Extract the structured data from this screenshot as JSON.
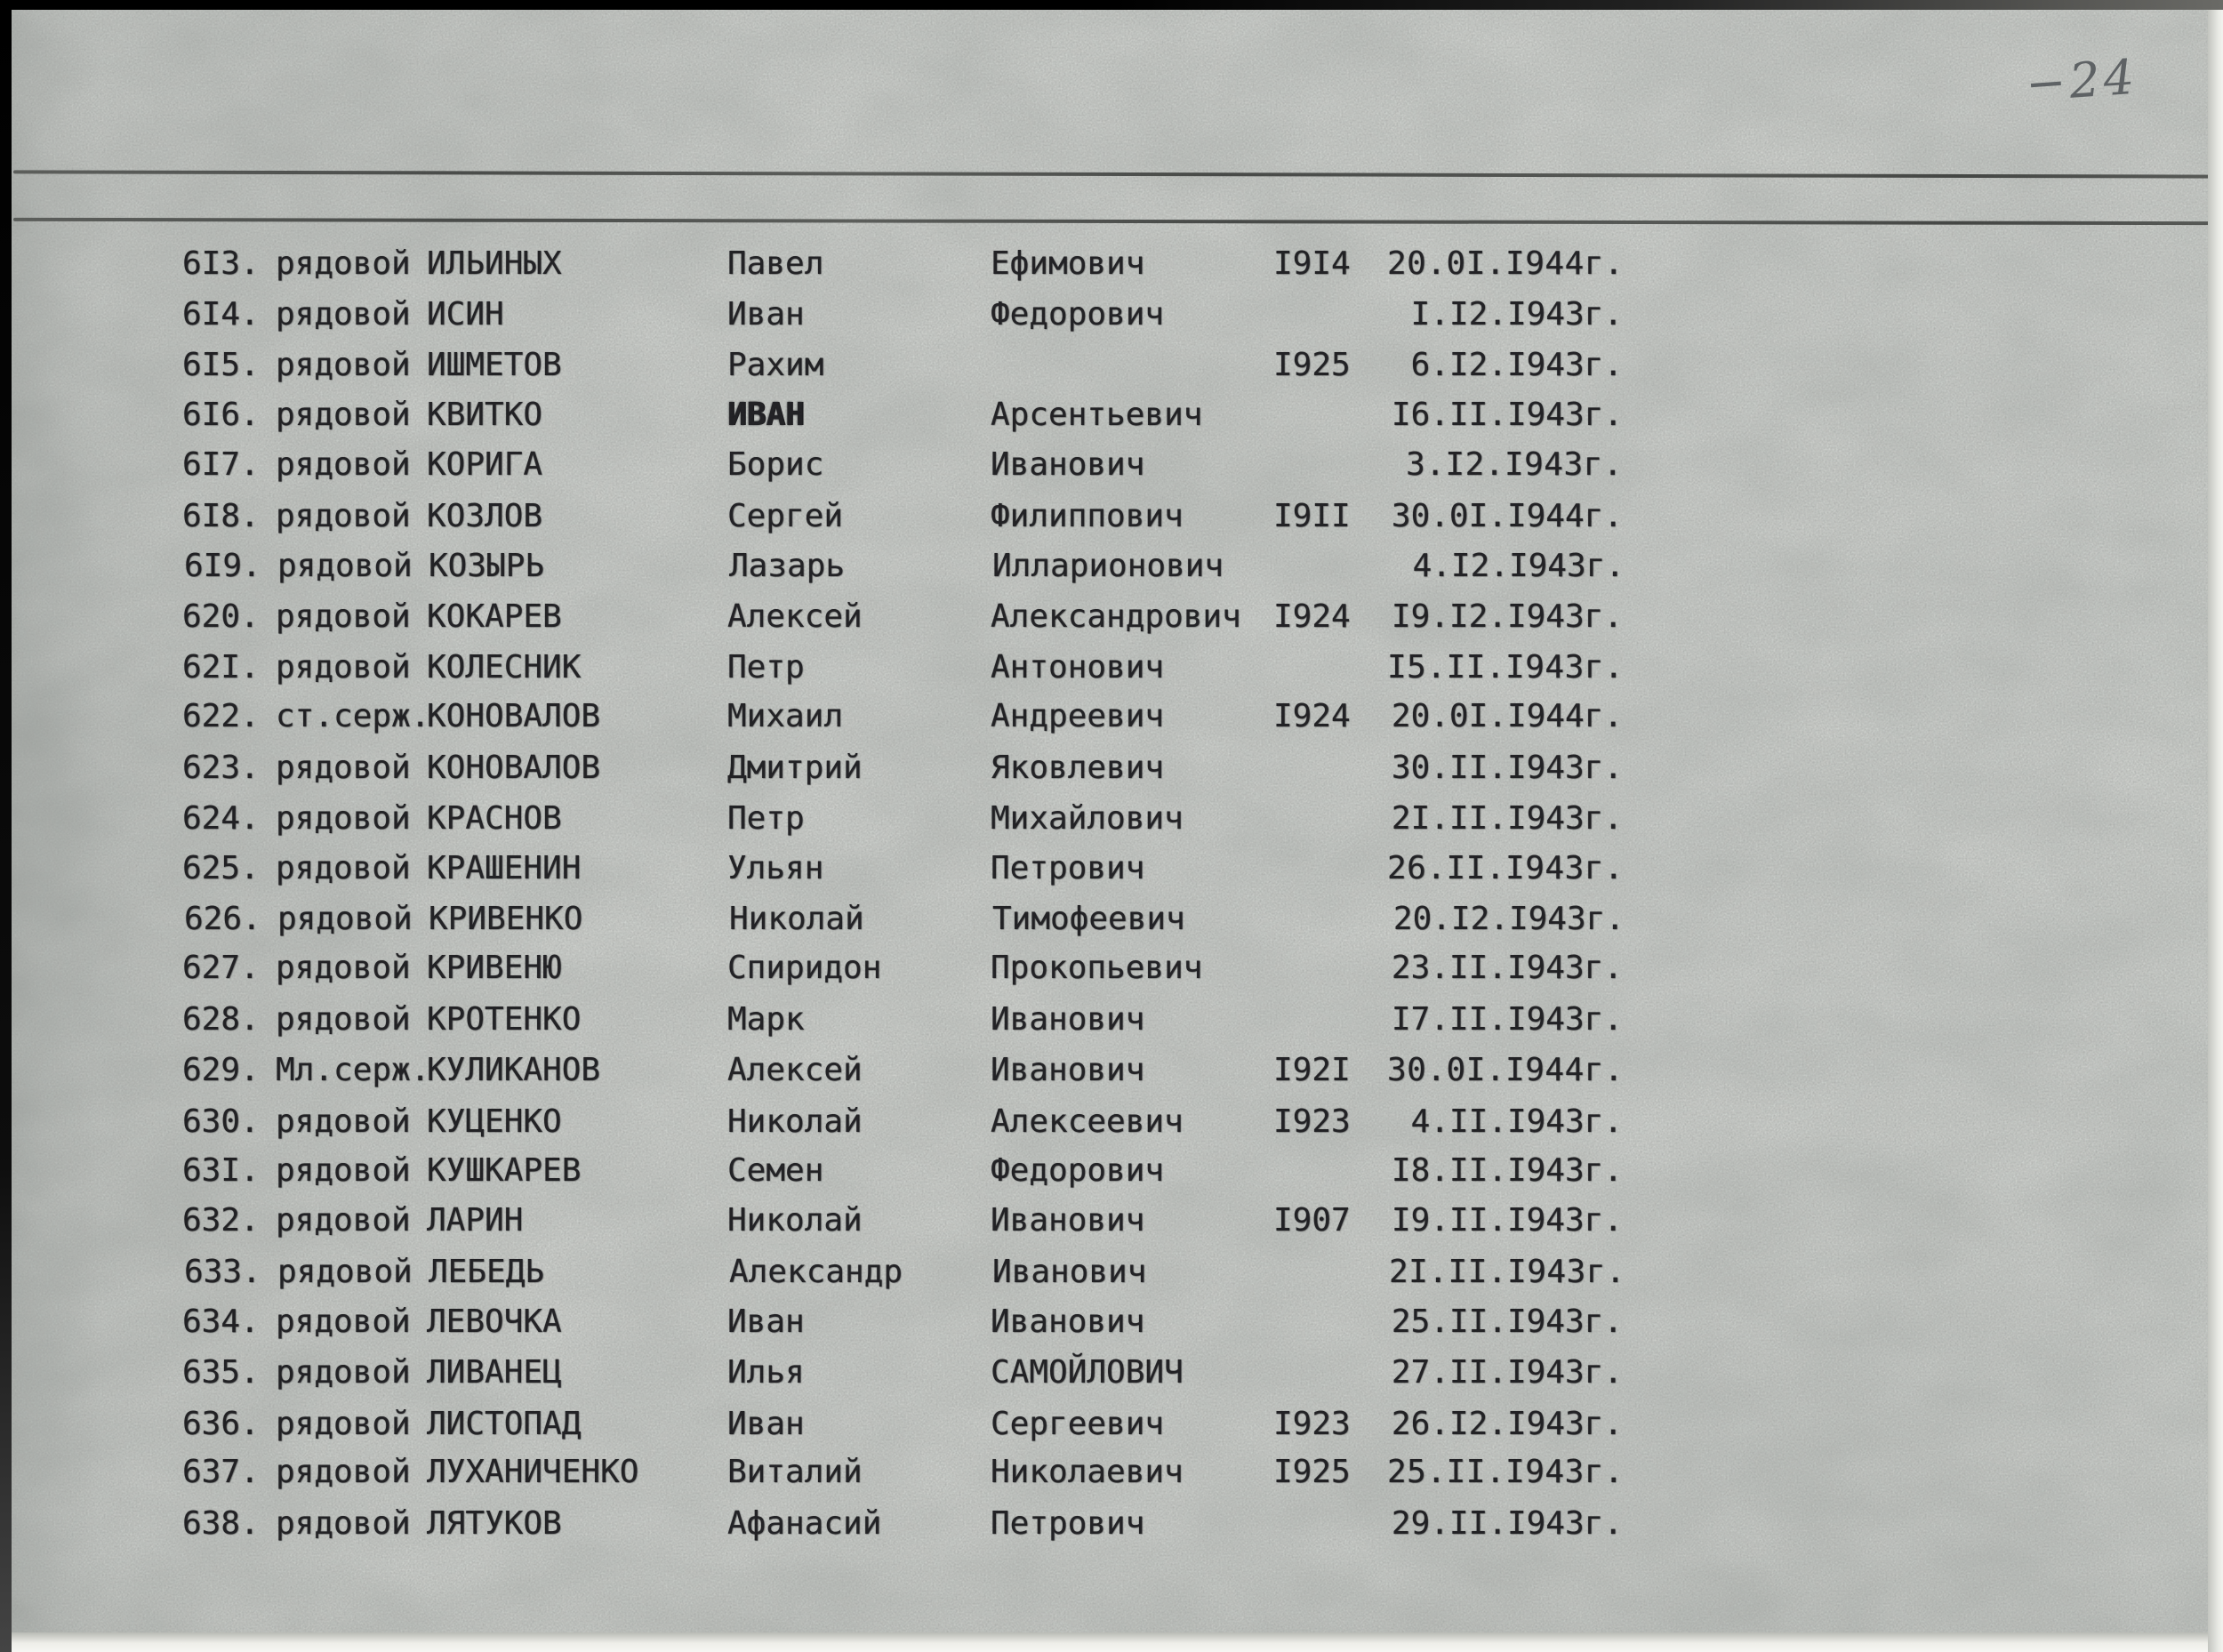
{
  "page": {
    "number_label": "−24",
    "paper_color": "#c8cbc7",
    "ink_color": "#2e2d32",
    "pencil_color": "#4e5256",
    "rule_color": "#454744"
  },
  "table": {
    "columns": [
      "number",
      "rank",
      "surname",
      "first_name",
      "patronymic",
      "birth_year",
      "death_date"
    ],
    "rows": [
      {
        "num": "6I3.",
        "rank": "рядовой",
        "surname": "ИЛЬИНЫХ",
        "name": "Павел",
        "patronymic": "Ефимович",
        "year": "I9I4",
        "date": "20.0I.I944г."
      },
      {
        "num": "6I4.",
        "rank": "рядовой",
        "surname": "ИСИН",
        "name": "Иван",
        "patronymic": "Федорович",
        "year": "",
        "date": "I.I2.I943г."
      },
      {
        "num": "6I5.",
        "rank": "рядовой",
        "surname": "ИШМЕТОВ",
        "name": "Рахим",
        "patronymic": "",
        "year": "I925",
        "date": "6.I2.I943г."
      },
      {
        "num": "6I6.",
        "rank": "рядовой",
        "surname": "КВИТКО",
        "name": "ИВАН",
        "patronymic": "Арсентьевич",
        "year": "",
        "date": "I6.II.I943г.",
        "name_bold": true
      },
      {
        "num": "6I7.",
        "rank": "рядовой",
        "surname": "КОРИГА",
        "name": "Борис",
        "patronymic": "Иванович",
        "year": "",
        "date": "3.I2.I943г."
      },
      {
        "num": "6I8.",
        "rank": "рядовой",
        "surname": "КОЗЛОВ",
        "name": "Сергей",
        "patronymic": "Филиппович",
        "year": "I9II",
        "date": "30.0I.I944г."
      },
      {
        "num": "6I9.",
        "rank": "рядовой",
        "surname": "КОЗЫРЬ",
        "name": "Лазарь",
        "patronymic": "Илларионович",
        "year": "",
        "date": "4.I2.I943г."
      },
      {
        "num": "620.",
        "rank": "рядовой",
        "surname": "КОКАРЕВ",
        "name": "Алексей",
        "patronymic": "Александрович",
        "year": "I924",
        "date": "I9.I2.I943г."
      },
      {
        "num": "62I.",
        "rank": "рядовой",
        "surname": "КОЛЕСНИК",
        "name": "Петр",
        "patronymic": "Антонович",
        "year": "",
        "date": "I5.II.I943г."
      },
      {
        "num": "622.",
        "rank": "ст.серж.",
        "surname": "КОНОВАЛОВ",
        "name": "Михаил",
        "patronymic": "Андреевич",
        "year": "I924",
        "date": "20.0I.I944г."
      },
      {
        "num": "623.",
        "rank": "рядовой",
        "surname": "КОНОВАЛОВ",
        "name": "Дмитрий",
        "patronymic": "Яковлевич",
        "year": "",
        "date": "30.II.I943г."
      },
      {
        "num": "624.",
        "rank": "рядовой",
        "surname": "КРАСНОВ",
        "name": "Петр",
        "patronymic": "Михайлович",
        "year": "",
        "date": "2I.II.I943г."
      },
      {
        "num": "625.",
        "rank": "рядовой",
        "surname": "КРАШЕНИН",
        "name": "Ульян",
        "patronymic": "Петрович",
        "year": "",
        "date": "26.II.I943г."
      },
      {
        "num": "626.",
        "rank": "рядовой",
        "surname": "КРИВЕНКО",
        "name": "Николай",
        "patronymic": "Тимофеевич",
        "year": "",
        "date": "20.I2.I943г."
      },
      {
        "num": "627.",
        "rank": "рядовой",
        "surname": "КРИВЕНЮ",
        "name": "Спиридон",
        "patronymic": "Прокопьевич",
        "year": "",
        "date": "23.II.I943г."
      },
      {
        "num": "628.",
        "rank": "рядовой",
        "surname": "КРОТЕНКО",
        "name": "Марк",
        "patronymic": "Иванович",
        "year": "",
        "date": "I7.II.I943г."
      },
      {
        "num": "629.",
        "rank": "Мл.серж.",
        "surname": "КУЛИКАНОВ",
        "name": "Алексей",
        "patronymic": "Иванович",
        "year": "I92I",
        "date": "30.0I.I944г."
      },
      {
        "num": "630.",
        "rank": "рядовой",
        "surname": "КУЦЕНКО",
        "name": "Николай",
        "patronymic": "Алексеевич",
        "year": "I923",
        "date": "4.II.I943г."
      },
      {
        "num": "63I.",
        "rank": "рядовой",
        "surname": "КУШКАРЕВ",
        "name": "Семен",
        "patronymic": "Федорович",
        "year": "",
        "date": "I8.II.I943г."
      },
      {
        "num": "632.",
        "rank": "рядовой",
        "surname": "ЛАРИН",
        "name": "Николай",
        "patronymic": "Иванович",
        "year": "I907",
        "date": "I9.II.I943г."
      },
      {
        "num": "633.",
        "rank": "рядовой",
        "surname": "ЛЕБЕДЬ",
        "name": "Александр",
        "patronymic": "Иванович",
        "year": "",
        "date": "2I.II.I943г."
      },
      {
        "num": "634.",
        "rank": "рядовой",
        "surname": "ЛЕВОЧКА",
        "name": "Иван",
        "patronymic": "Иванович",
        "year": "",
        "date": "25.II.I943г."
      },
      {
        "num": "635.",
        "rank": "рядовой",
        "surname": "ЛИВАНЕЦ",
        "name": "Илья",
        "patronymic": "САМОЙЛОВИЧ",
        "year": "",
        "date": "27.II.I943г."
      },
      {
        "num": "636.",
        "rank": "рядовой",
        "surname": "ЛИСТОПАД",
        "name": "Иван",
        "patronymic": "Сергеевич",
        "year": "I923",
        "date": "26.I2.I943г."
      },
      {
        "num": "637.",
        "rank": "рядовой",
        "surname": "ЛУХАНИЧЕНКО",
        "name": "Виталий",
        "patronymic": "Николаевич",
        "year": "I925",
        "date": "25.II.I943г."
      },
      {
        "num": "638.",
        "rank": "рядовой",
        "surname": "ЛЯТУКОВ",
        "name": "Афанасий",
        "patronymic": "Петрович",
        "year": "",
        "date": "29.II.I943г."
      }
    ]
  }
}
